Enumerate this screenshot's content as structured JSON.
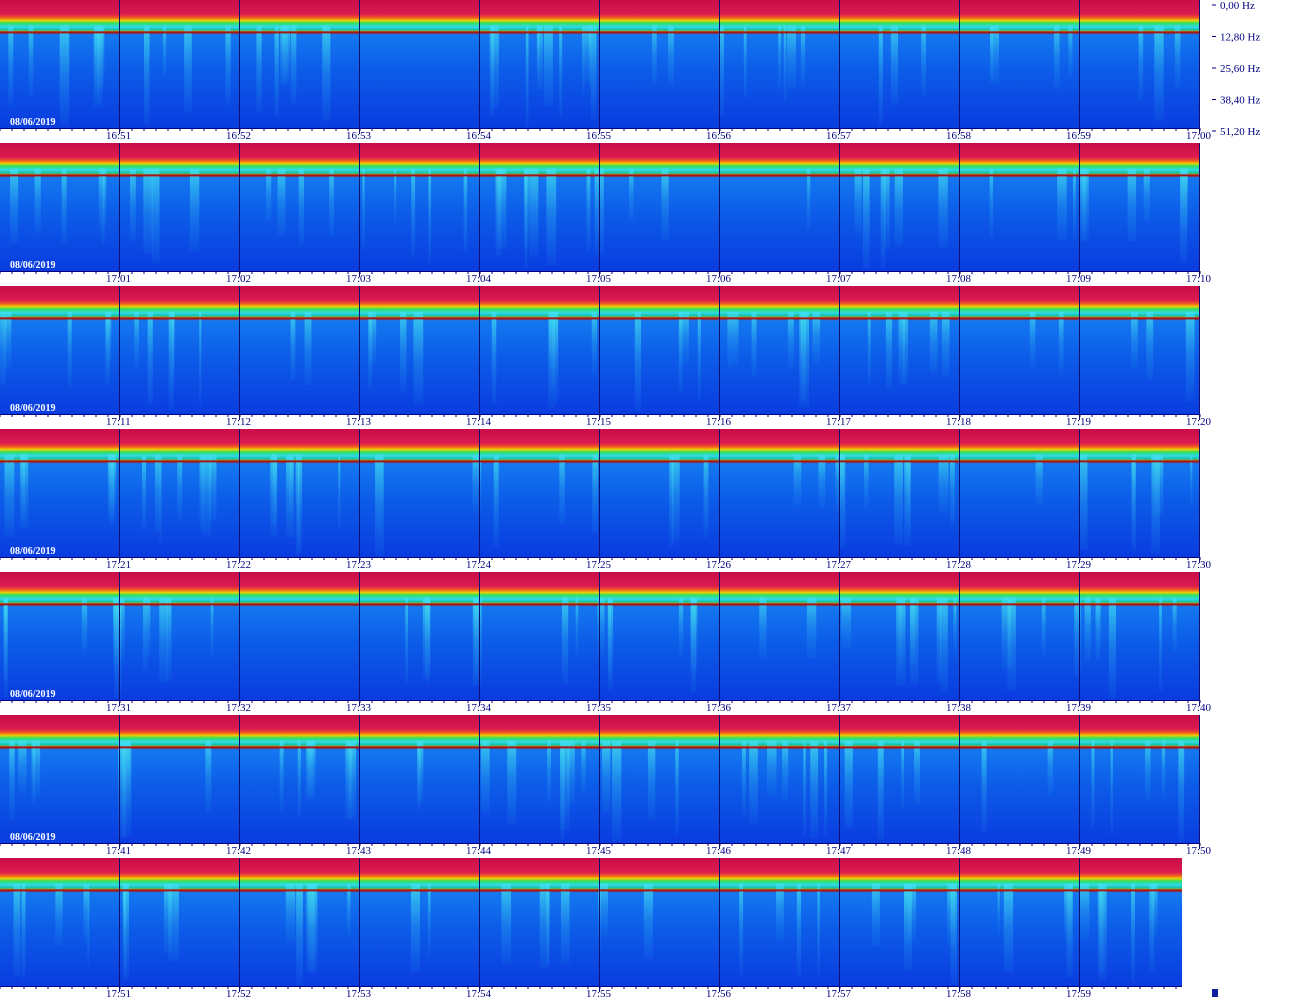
{
  "frequency_axis": [
    "0,00 Hz",
    "12,80 Hz",
    "25,60 Hz",
    "38,40 Hz",
    "51,20 Hz"
  ],
  "rows": [
    {
      "date": "08/06/2019",
      "times": [
        "16:51",
        "16:52",
        "16:53",
        "16:54",
        "16:55",
        "16:56",
        "16:57",
        "16:58",
        "16:59",
        "17:00"
      ]
    },
    {
      "date": "08/06/2019",
      "times": [
        "17:01",
        "17:02",
        "17:03",
        "17:04",
        "17:05",
        "17:06",
        "17:07",
        "17:08",
        "17:09",
        "17:10"
      ]
    },
    {
      "date": "08/06/2019",
      "times": [
        "17:11",
        "17:12",
        "17:13",
        "17:14",
        "17:15",
        "17:16",
        "17:17",
        "17:18",
        "17:19",
        "17:20"
      ]
    },
    {
      "date": "08/06/2019",
      "times": [
        "17:21",
        "17:22",
        "17:23",
        "17:24",
        "17:25",
        "17:26",
        "17:27",
        "17:28",
        "17:29",
        "17:30"
      ]
    },
    {
      "date": "08/06/2019",
      "times": [
        "17:31",
        "17:32",
        "17:33",
        "17:34",
        "17:35",
        "17:36",
        "17:37",
        "17:38",
        "17:39",
        "17:40"
      ]
    },
    {
      "date": "08/06/2019",
      "times": [
        "17:41",
        "17:42",
        "17:43",
        "17:44",
        "17:45",
        "17:46",
        "17:47",
        "17:48",
        "17:49",
        "17:50"
      ]
    },
    {
      "times": [
        "17:51",
        "17:52",
        "17:53",
        "17:54",
        "17:55",
        "17:56",
        "17:57",
        "17:58",
        "17:59"
      ]
    }
  ]
}
